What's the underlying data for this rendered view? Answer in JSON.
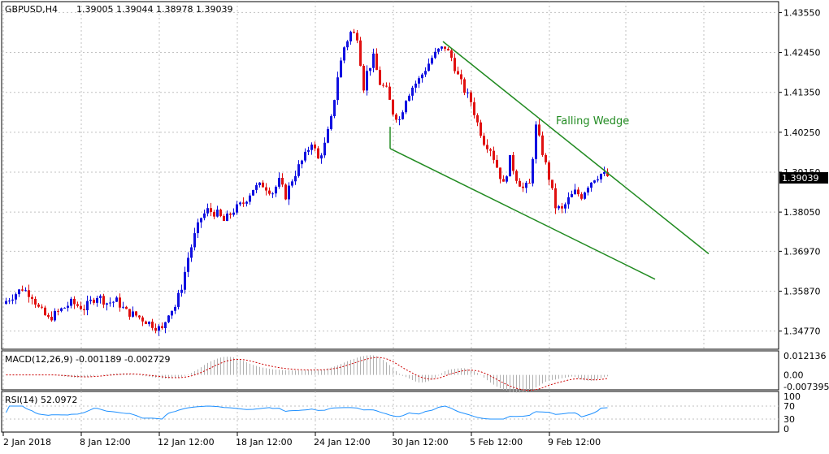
{
  "window": {
    "symbol": "GBPUSD,H4",
    "ohlc": "1.39005 1.39044 1.38978 1.39039"
  },
  "colors": {
    "background": "#ffffff",
    "grid": "#c0c0c0",
    "bull_candle": "#1010e0",
    "bear_candle": "#e01010",
    "wedge": "#228b22",
    "current_price_box": "#000000",
    "macd_signal": "#cc0000",
    "macd_histogram": "#b0b0b0",
    "rsi_line": "#1e90ff"
  },
  "chart_data": [
    {
      "type": "candlestick",
      "title": "GBPUSD,H4",
      "ylim": [
        1.3427,
        1.4385
      ],
      "y_ticks": [
        "1.43550",
        "1.42450",
        "1.41350",
        "1.40250",
        "1.39150",
        "1.38050",
        "1.36970",
        "1.35870",
        "1.34770"
      ],
      "x_ticks": [
        "2 Jan 2018",
        "8 Jan 12:00",
        "12 Jan 12:00",
        "18 Jan 12:00",
        "24 Jan 12:00",
        "30 Jan 12:00",
        "5 Feb 12:00",
        "9 Feb 12:00"
      ],
      "current_price": "1.39039",
      "grid": true,
      "candles_close_path": [
        [
          0,
          1.356
        ],
        [
          5,
          1.3595
        ],
        [
          8,
          1.3575
        ],
        [
          10,
          1.354
        ],
        [
          13,
          1.351
        ],
        [
          16,
          1.353
        ],
        [
          20,
          1.3555
        ],
        [
          24,
          1.354
        ],
        [
          28,
          1.3575
        ],
        [
          31,
          1.3555
        ],
        [
          34,
          1.356
        ],
        [
          37,
          1.353
        ],
        [
          40,
          1.352
        ],
        [
          43,
          1.3505
        ],
        [
          46,
          1.349
        ],
        [
          48,
          1.348
        ],
        [
          50,
          1.353
        ],
        [
          52,
          1.3545
        ],
        [
          54,
          1.36
        ],
        [
          56,
          1.368
        ],
        [
          58,
          1.374
        ],
        [
          60,
          1.379
        ],
        [
          62,
          1.381
        ],
        [
          65,
          1.38
        ],
        [
          67,
          1.378
        ],
        [
          70,
          1.381
        ],
        [
          73,
          1.383
        ],
        [
          76,
          1.387
        ],
        [
          79,
          1.388
        ],
        [
          82,
          1.386
        ],
        [
          84,
          1.389
        ],
        [
          86,
          1.385
        ],
        [
          88,
          1.3895
        ],
        [
          90,
          1.393
        ],
        [
          92,
          1.396
        ],
        [
          94,
          1.4
        ],
        [
          96,
          1.395
        ],
        [
          98,
          1.399
        ],
        [
          100,
          1.406
        ],
        [
          102,
          1.418
        ],
        [
          104,
          1.426
        ],
        [
          106,
          1.43
        ],
        [
          108,
          1.429
        ],
        [
          110,
          1.415
        ],
        [
          111,
          1.419
        ],
        [
          113,
          1.423
        ],
        [
          115,
          1.416
        ],
        [
          117,
          1.414
        ],
        [
          119,
          1.408
        ],
        [
          121,
          1.406
        ],
        [
          123,
          1.412
        ],
        [
          125,
          1.415
        ],
        [
          127,
          1.417
        ],
        [
          129,
          1.42
        ],
        [
          131,
          1.423
        ],
        [
          133,
          1.425
        ],
        [
          135,
          1.426
        ],
        [
          137,
          1.423
        ],
        [
          139,
          1.418
        ],
        [
          141,
          1.414
        ],
        [
          143,
          1.411
        ],
        [
          145,
          1.405
        ],
        [
          147,
          1.4
        ],
        [
          149,
          1.398
        ],
        [
          151,
          1.393
        ],
        [
          153,
          1.388
        ],
        [
          155,
          1.395
        ],
        [
          157,
          1.39
        ],
        [
          159,
          1.387
        ],
        [
          161,
          1.388
        ],
        [
          163,
          1.404
        ],
        [
          165,
          1.397
        ],
        [
          167,
          1.39
        ],
        [
          169,
          1.382
        ],
        [
          171,
          1.381
        ],
        [
          173,
          1.384
        ],
        [
          175,
          1.386
        ],
        [
          177,
          1.385
        ],
        [
          179,
          1.388
        ],
        [
          181,
          1.39
        ],
        [
          183,
          1.391
        ],
        [
          185,
          1.3904
        ]
      ]
    },
    {
      "type": "line",
      "title": "MACD(12,26,9) -0.001189 -0.002729",
      "y_ticks": [
        "0.012136",
        "0.00",
        "-0.007395"
      ]
    },
    {
      "type": "line",
      "title": "RSI(14) 52.0972",
      "y_ticks": [
        "100",
        "70",
        "30",
        "0"
      ]
    }
  ],
  "annotations": {
    "pattern_label": "Falling Wedge"
  }
}
